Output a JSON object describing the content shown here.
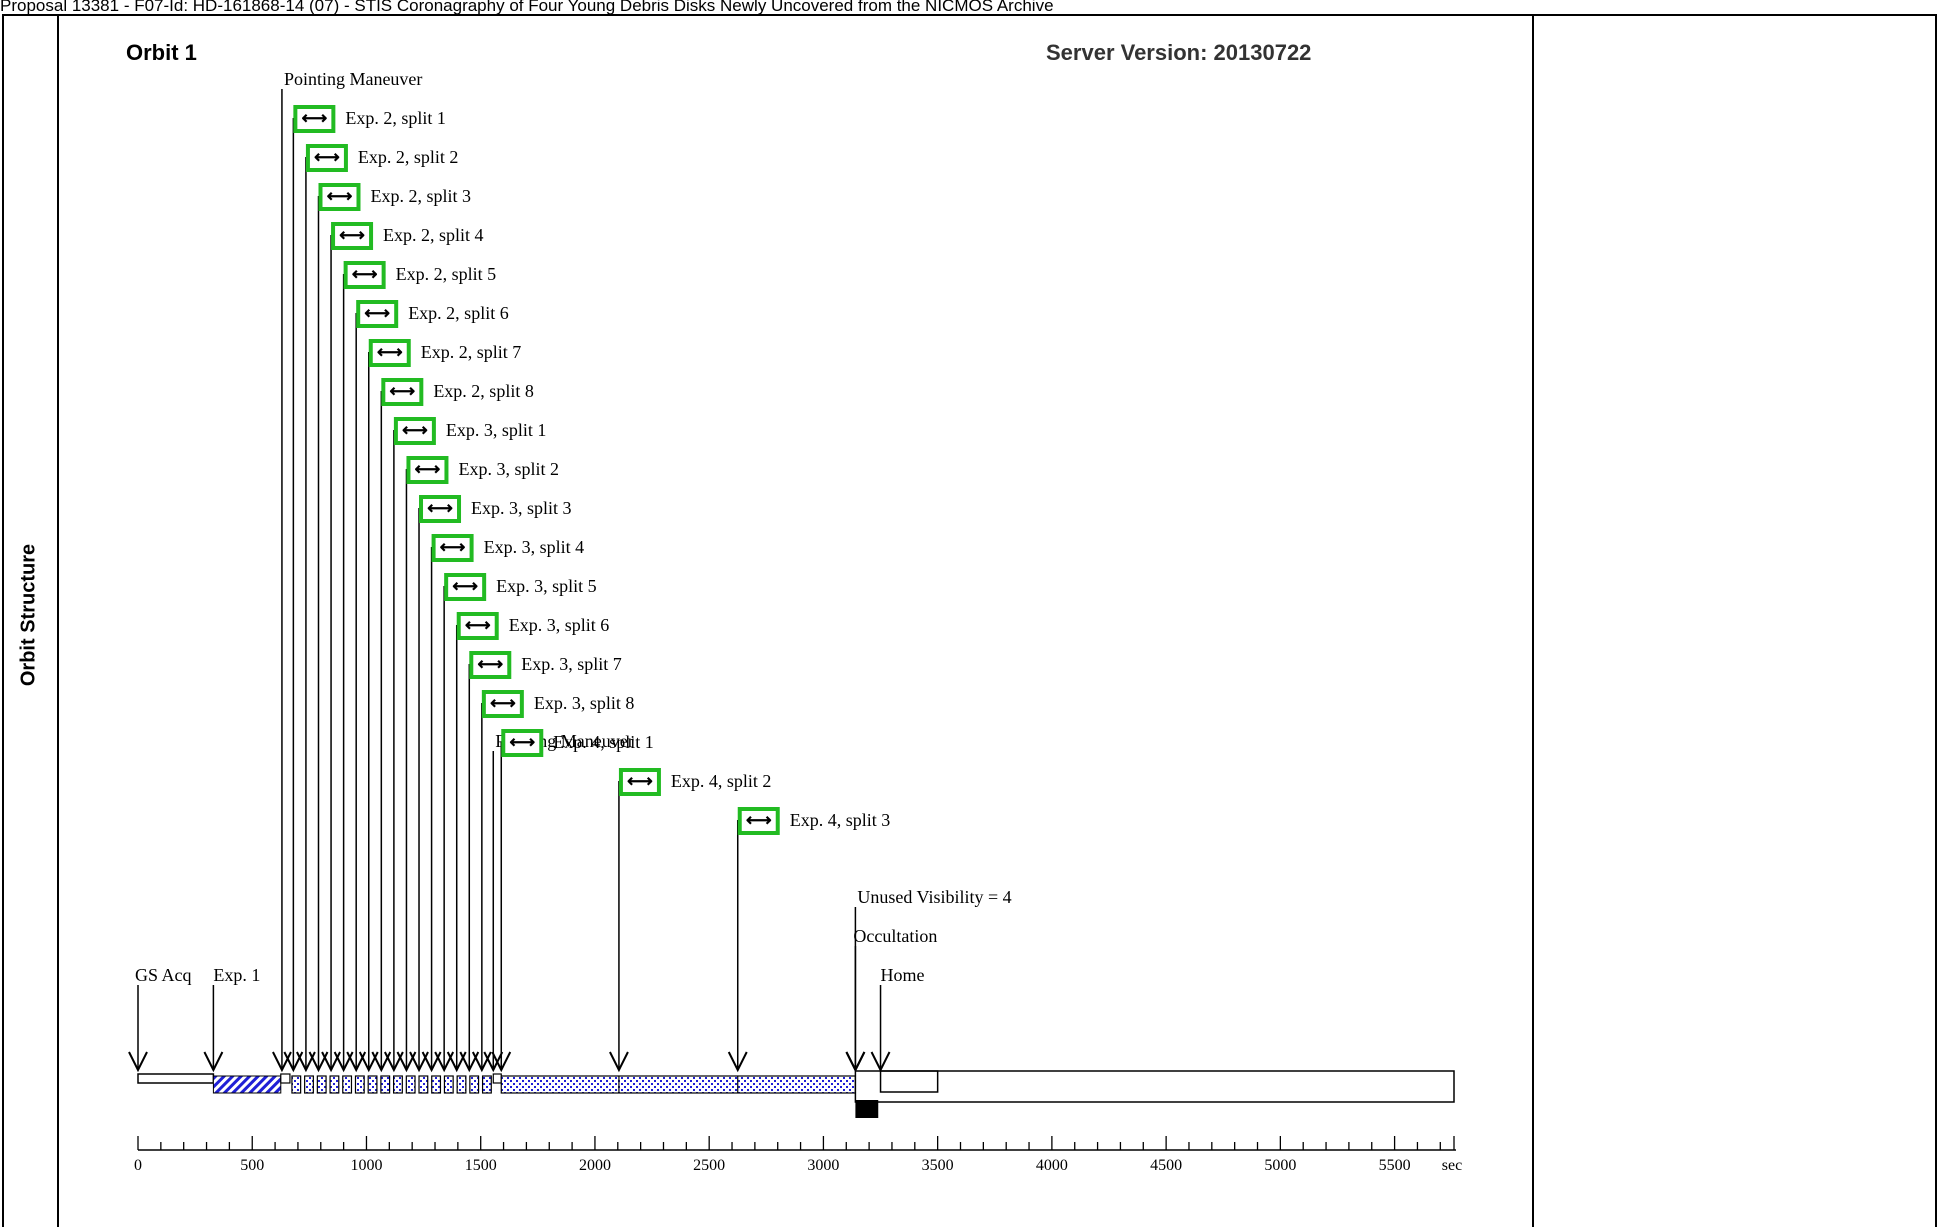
{
  "page_caption": "Proposal 13381 - F07-Id: HD-161868-14 (07) - STIS Coronagraphy of Four Young Debris Disks Newly Uncovered from the NICMOS Archive",
  "side_label": "Orbit Structure",
  "colors": {
    "frame": "#000000",
    "marker_box": "#22bb22",
    "hatch": "#1f1fd6",
    "dots": "#1f1fd6",
    "occultation": "#000000"
  },
  "chart_data": {
    "type": "timeline",
    "title": "Orbit 1",
    "server_version_label": "Server Version: 20130722",
    "x_unit": "sec",
    "xlim": [
      0,
      5760
    ],
    "x_ticks": [
      0,
      500,
      1000,
      1500,
      2000,
      2500,
      3000,
      3500,
      4000,
      4500,
      5000,
      5500
    ],
    "minor_tick_step": 100,
    "events": [
      {
        "label": "GS Acq",
        "time": 0,
        "start_bar": true
      },
      {
        "label": "Exp. 1",
        "time": 330
      },
      {
        "label": "Pointing Maneuver",
        "time": 630
      },
      {
        "label": "Exp. 2, split 1",
        "time": 680,
        "marker": true
      },
      {
        "label": "Exp. 2, split 2",
        "time": 735,
        "marker": true
      },
      {
        "label": "Exp. 2, split 3",
        "time": 790,
        "marker": true
      },
      {
        "label": "Exp. 2, split 4",
        "time": 845,
        "marker": true
      },
      {
        "label": "Exp. 2, split 5",
        "time": 900,
        "marker": true
      },
      {
        "label": "Exp. 2, split 6",
        "time": 955,
        "marker": true
      },
      {
        "label": "Exp. 2, split 7",
        "time": 1010,
        "marker": true
      },
      {
        "label": "Exp. 2, split 8",
        "time": 1065,
        "marker": true
      },
      {
        "label": "Exp. 3, split 1",
        "time": 1120,
        "marker": true
      },
      {
        "label": "Exp. 3, split 2",
        "time": 1175,
        "marker": true
      },
      {
        "label": "Exp. 3, split 3",
        "time": 1230,
        "marker": true
      },
      {
        "label": "Exp. 3, split 4",
        "time": 1285,
        "marker": true
      },
      {
        "label": "Exp. 3, split 5",
        "time": 1340,
        "marker": true
      },
      {
        "label": "Exp. 3, split 6",
        "time": 1395,
        "marker": true
      },
      {
        "label": "Exp. 3, split 7",
        "time": 1450,
        "marker": true
      },
      {
        "label": "Exp. 3, split 8",
        "time": 1505,
        "marker": true
      },
      {
        "label": "Pointing Maneuver",
        "time": 1555
      },
      {
        "label": "Exp. 4, split 1",
        "time": 1590,
        "marker": true
      },
      {
        "label": "Exp. 4, split 2",
        "time": 2105,
        "marker": true
      },
      {
        "label": "Exp. 4, split 3",
        "time": 2625,
        "marker": true
      },
      {
        "label": "Unused Visibility = 4",
        "time": 3140
      },
      {
        "label": "Occultation",
        "time": 3140
      },
      {
        "label": "Home",
        "time": 3250
      }
    ],
    "segments": [
      {
        "kind": "guide-star",
        "start": 0,
        "end": 330
      },
      {
        "kind": "exposure-hatched",
        "start": 330,
        "end": 625
      },
      {
        "kind": "maneuver",
        "start": 625,
        "end": 665
      },
      {
        "kind": "split-dots",
        "start": 665,
        "end": 1555,
        "splits": 16
      },
      {
        "kind": "maneuver",
        "start": 1555,
        "end": 1590
      },
      {
        "kind": "exposure-dots",
        "start": 1590,
        "end": 3140,
        "dividers": [
          2105,
          2625
        ]
      },
      {
        "kind": "occultation",
        "start": 3140,
        "end": 3240
      },
      {
        "kind": "home",
        "start": 3250,
        "end": 3500
      },
      {
        "kind": "window",
        "start": 3140,
        "end": 5760
      }
    ]
  }
}
